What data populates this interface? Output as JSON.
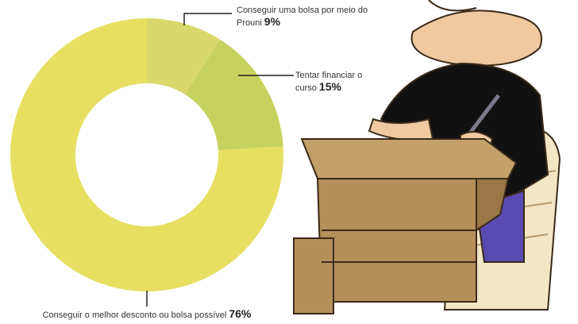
{
  "chart_data": {
    "type": "donut",
    "categories": [
      "Conseguir uma bolsa por meio do Prouni",
      "Tentar financiar o curso",
      "Conseguir o melhor desconto ou bolsa possível"
    ],
    "values": [
      9,
      15,
      76
    ],
    "value_labels": [
      "9%",
      "15%",
      "76%"
    ],
    "colors": [
      "#d8d86c",
      "#c6d25e",
      "#e7df62"
    ]
  }
}
